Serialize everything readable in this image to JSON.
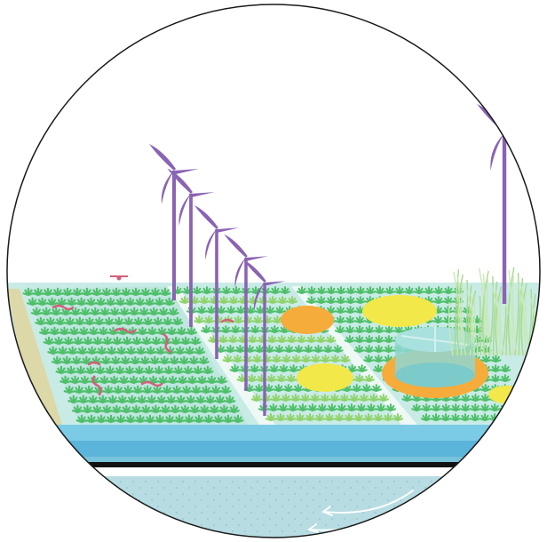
{
  "scene": {
    "subject": "agrivoltaic-wind-farm-illustration",
    "colors": {
      "sky": "#ffffff",
      "outline": "#1a1a1a",
      "field_base": "#c9ebe6",
      "path": "#e6f4f0",
      "crop_dark": "#4fbf6a",
      "crop_light": "#8fd36b",
      "turbine": "#8a63b3",
      "canal_light": "#7ccbe6",
      "canal_mid": "#5bb4d9",
      "canal_line": "#111111",
      "water_dots": "#b7dde3",
      "orange_patch": "#f6ac3a",
      "yellow_patch": "#f2e84a",
      "tank": "#7dcfd1",
      "worm": "#d2607a",
      "reeds": "#b9e2a4"
    }
  }
}
